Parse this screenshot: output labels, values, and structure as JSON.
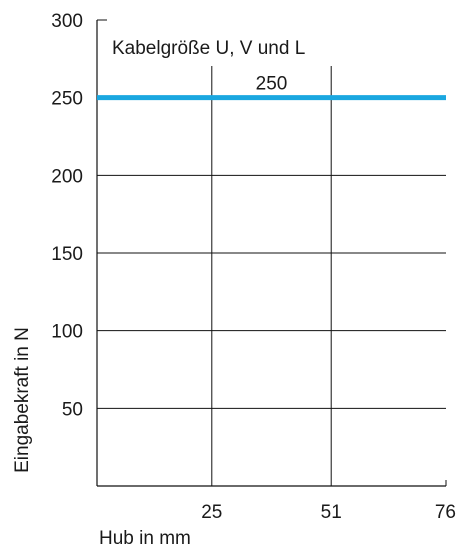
{
  "chart_data": {
    "type": "line",
    "title": "",
    "annotation": "Kabelgröße U, V und L",
    "xlabel": "Hub in mm",
    "ylabel": "Eingabekraft in N",
    "x_ticks": [
      "25",
      "51",
      "76"
    ],
    "x_tick_values": [
      25,
      51,
      76
    ],
    "xlim": [
      0,
      76
    ],
    "y_ticks": [
      "50",
      "100",
      "150",
      "200",
      "250",
      "300"
    ],
    "y_tick_values": [
      50,
      100,
      150,
      200,
      250,
      300
    ],
    "ylim": [
      0,
      300
    ],
    "grid": true,
    "series": [
      {
        "color": "#1aa7e0",
        "x": [
          0,
          76
        ],
        "y": [
          250,
          250
        ],
        "data_label": "250"
      }
    ]
  }
}
